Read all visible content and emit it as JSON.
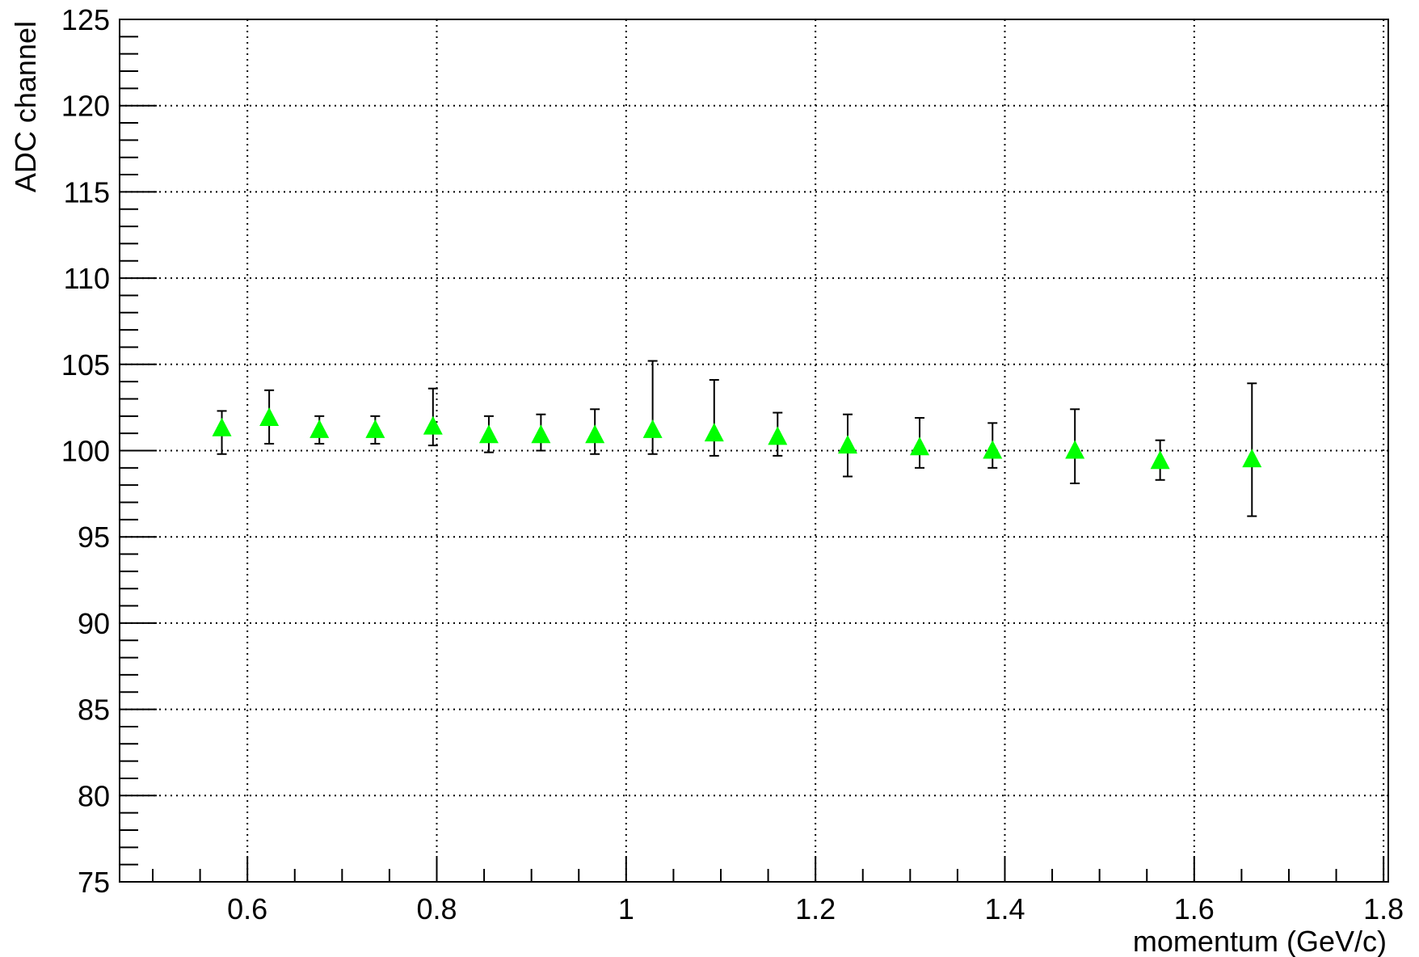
{
  "chart_data": {
    "type": "scatter",
    "title": "",
    "xlabel": "momentum (GeV/c)",
    "ylabel": "ADC channel",
    "xlim": [
      0.465,
      1.805
    ],
    "ylim": [
      75,
      125
    ],
    "grid": true,
    "marker": "triangle-up",
    "marker_color": "#00ff00",
    "error_bar_color": "#000000",
    "x_ticks": [
      {
        "value": 0.6,
        "label": "0.6"
      },
      {
        "value": 0.8,
        "label": "0.8"
      },
      {
        "value": 1.0,
        "label": "1"
      },
      {
        "value": 1.2,
        "label": "1.2"
      },
      {
        "value": 1.4,
        "label": "1.4"
      },
      {
        "value": 1.6,
        "label": "1.6"
      },
      {
        "value": 1.8,
        "label": "1.8"
      }
    ],
    "y_ticks": [
      {
        "value": 75,
        "label": "75"
      },
      {
        "value": 80,
        "label": "80"
      },
      {
        "value": 85,
        "label": "85"
      },
      {
        "value": 90,
        "label": "90"
      },
      {
        "value": 95,
        "label": "95"
      },
      {
        "value": 100,
        "label": "100"
      },
      {
        "value": 105,
        "label": "105"
      },
      {
        "value": 110,
        "label": "110"
      },
      {
        "value": 115,
        "label": "115"
      },
      {
        "value": 120,
        "label": "120"
      },
      {
        "value": 125,
        "label": "125"
      }
    ],
    "points": [
      {
        "x": 0.573,
        "y": 101.3,
        "ylow": 99.8,
        "yhigh": 102.3
      },
      {
        "x": 0.623,
        "y": 101.9,
        "ylow": 100.4,
        "yhigh": 103.5
      },
      {
        "x": 0.676,
        "y": 101.2,
        "ylow": 100.4,
        "yhigh": 102.0
      },
      {
        "x": 0.735,
        "y": 101.2,
        "ylow": 100.4,
        "yhigh": 102.0
      },
      {
        "x": 0.796,
        "y": 101.4,
        "ylow": 100.3,
        "yhigh": 103.6
      },
      {
        "x": 0.855,
        "y": 100.9,
        "ylow": 99.9,
        "yhigh": 102.0
      },
      {
        "x": 0.91,
        "y": 100.9,
        "ylow": 100.0,
        "yhigh": 102.1
      },
      {
        "x": 0.967,
        "y": 100.9,
        "ylow": 99.8,
        "yhigh": 102.4
      },
      {
        "x": 1.028,
        "y": 101.2,
        "ylow": 99.8,
        "yhigh": 105.2
      },
      {
        "x": 1.093,
        "y": 101.0,
        "ylow": 99.7,
        "yhigh": 104.1
      },
      {
        "x": 1.16,
        "y": 100.8,
        "ylow": 99.7,
        "yhigh": 102.2
      },
      {
        "x": 1.234,
        "y": 100.3,
        "ylow": 98.5,
        "yhigh": 102.1
      },
      {
        "x": 1.31,
        "y": 100.2,
        "ylow": 99.0,
        "yhigh": 101.9
      },
      {
        "x": 1.387,
        "y": 100.0,
        "ylow": 99.0,
        "yhigh": 101.6
      },
      {
        "x": 1.474,
        "y": 100.0,
        "ylow": 98.1,
        "yhigh": 102.4
      },
      {
        "x": 1.564,
        "y": 99.4,
        "ylow": 98.3,
        "yhigh": 100.6
      },
      {
        "x": 1.661,
        "y": 99.5,
        "ylow": 96.2,
        "yhigh": 103.9
      }
    ]
  }
}
